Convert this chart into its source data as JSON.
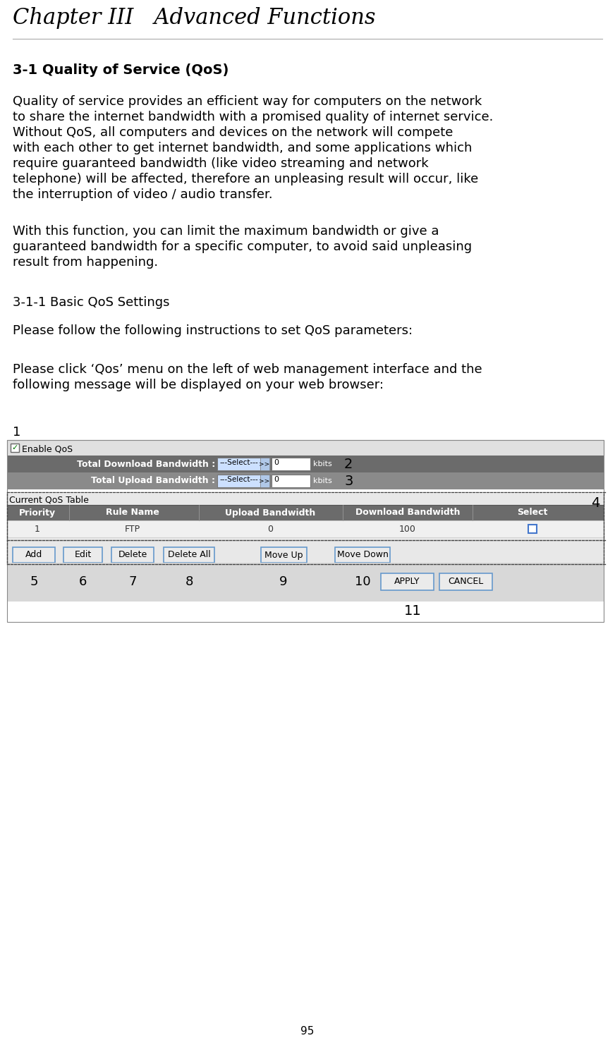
{
  "title": "Chapter III   Advanced Functions",
  "bg_color": "#ffffff",
  "text_color": "#000000",
  "page_number": "95",
  "section_heading": "3-1 Quality of Service (QoS)",
  "para1_lines": [
    "Quality of service provides an efficient way for computers on the network",
    "to share the internet bandwidth with a promised quality of internet service.",
    "Without QoS, all computers and devices on the network will compete",
    "with each other to get internet bandwidth, and some applications which",
    "require guaranteed bandwidth (like video streaming and network",
    "telephone) will be affected, therefore an unpleasing result will occur, like",
    "the interruption of video / audio transfer."
  ],
  "para2_lines": [
    "With this function, you can limit the maximum bandwidth or give a",
    "guaranteed bandwidth for a specific computer, to avoid said unpleasing",
    "result from happening."
  ],
  "subsection": "3-1-1 Basic QoS Settings",
  "para3": "Please follow the following instructions to set QoS parameters:",
  "para4_lines": [
    "Please click ‘Qos’ menu on the left of web management interface and the",
    "following message will be displayed on your web browser:"
  ]
}
